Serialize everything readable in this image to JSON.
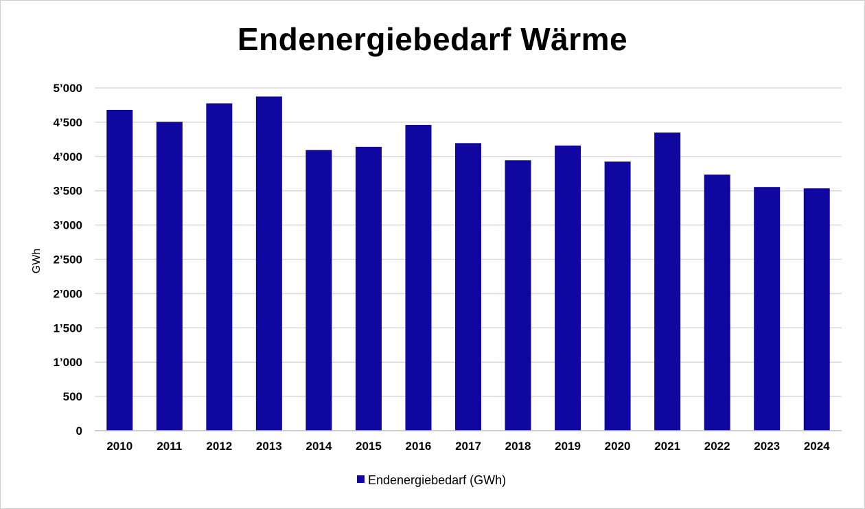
{
  "chart_data": {
    "type": "bar",
    "title": "Endenergiebedarf Wärme",
    "ylabel": "GWh",
    "xlabel": "",
    "categories": [
      "2010",
      "2011",
      "2012",
      "2013",
      "2014",
      "2015",
      "2016",
      "2017",
      "2018",
      "2019",
      "2020",
      "2021",
      "2022",
      "2023",
      "2024"
    ],
    "series": [
      {
        "name": "Endenergiebedarf (GWh)",
        "values": [
          4680,
          4505,
          4775,
          4875,
          4095,
          4140,
          4460,
          4195,
          3945,
          4160,
          3925,
          4350,
          3735,
          3555,
          3535
        ]
      }
    ],
    "ylim": [
      0,
      5000
    ],
    "yticks": [
      0,
      500,
      1000,
      1500,
      2000,
      2500,
      3000,
      3500,
      4000,
      4500,
      5000
    ],
    "ytick_labels": [
      "0",
      "500",
      "1’000",
      "1’500",
      "2’000",
      "2’500",
      "3’000",
      "3’500",
      "4’000",
      "4’500",
      "5’000"
    ],
    "grid": true,
    "legend_position": "bottom",
    "colors": {
      "bar": "#1006a0",
      "grid": "#d9d9d9",
      "text": "#000000"
    }
  }
}
